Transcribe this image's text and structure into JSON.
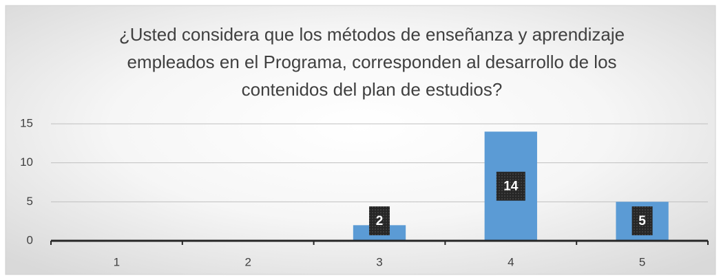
{
  "chart_data": {
    "type": "bar",
    "title": [
      "¿Usted considera que los métodos de enseñanza y aprendizaje",
      "empleados en el Programa, corresponden al desarrollo de los",
      "contenidos del plan de estudios?"
    ],
    "categories": [
      "1",
      "2",
      "3",
      "4",
      "5"
    ],
    "values": [
      0,
      0,
      2,
      14,
      5
    ],
    "value_labels": [
      null,
      null,
      "2",
      "14",
      "5"
    ],
    "color": "#5b9bd5",
    "ylim": [
      0,
      15
    ],
    "yticks": [
      0,
      5,
      10,
      15
    ],
    "grid": true
  }
}
